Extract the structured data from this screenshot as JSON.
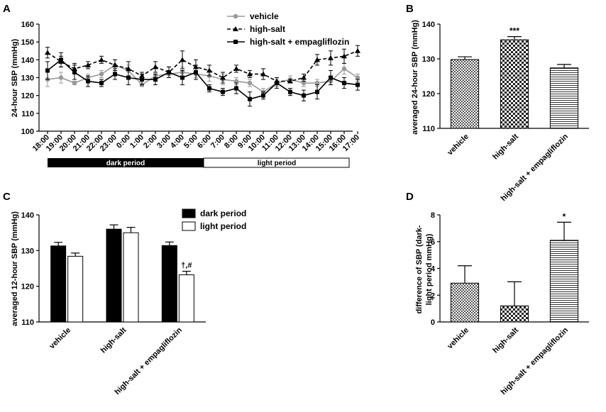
{
  "panels": {
    "A": {
      "letter": "A",
      "chart_data": {
        "type": "line",
        "ylabel": "24-hour SBP (mmHg)",
        "ylim": [
          100,
          160
        ],
        "yticks": [
          100,
          110,
          120,
          130,
          140,
          150,
          160
        ],
        "categories": [
          "18:00",
          "19:00",
          "20:00",
          "21:00",
          "22:00",
          "23:00",
          "0:00",
          "1:00",
          "2:00",
          "3:00",
          "4:00",
          "5:00",
          "6:00",
          "7:00",
          "8:00",
          "9:00",
          "10:00",
          "11:00",
          "12:00",
          "13:00",
          "14:00",
          "15:00",
          "16:00",
          "17:00"
        ],
        "series": [
          {
            "name": "vehicle",
            "color": "#999999",
            "marker": "circle",
            "dash": "solid",
            "values": [
              129,
              130,
              127,
              130,
              132,
              137,
              134,
              126,
              131,
              132,
              133,
              132,
              131,
              129,
              128,
              127,
              122,
              127,
              129,
              127,
              127,
              128,
              135,
              130
            ],
            "errors": [
              4,
              3,
              1,
              2,
              2,
              3,
              3,
              1,
              2,
              2,
              3,
              2,
              3,
              3,
              2,
              2,
              2,
              2,
              2,
              2,
              2,
              2,
              3,
              2
            ]
          },
          {
            "name": "high-salt",
            "color": "#000000",
            "marker": "triangle",
            "dash": "dashed",
            "values": [
              144,
              139,
              135,
              137,
              140,
              137,
              135,
              131,
              136,
              133,
              140,
              136,
              134,
              130,
              135,
              132,
              132,
              128,
              128,
              130,
              140,
              141,
              142,
              145
            ],
            "errors": [
              3,
              3,
              3,
              2,
              2,
              3,
              4,
              2,
              3,
              3,
              5,
              4,
              3,
              3,
              2,
              2,
              3,
              2,
              1,
              2,
              3,
              4,
              4,
              3
            ]
          },
          {
            "name": "high-salt + empagliflozin",
            "color": "#000000",
            "marker": "square",
            "dash": "solid",
            "values": [
              134,
              140,
              133,
              128,
              127,
              132,
              130,
              129,
              129,
              133,
              130,
              133,
              124,
              122,
              124,
              118,
              120,
              127,
              122,
              120,
              122,
              130,
              127,
              126
            ],
            "errors": [
              5,
              4,
              4,
              3,
              2,
              3,
              4,
              3,
              3,
              3,
              4,
              4,
              2,
              2,
              3,
              4,
              2,
              3,
              2,
              3,
              4,
              4,
              3,
              3
            ]
          }
        ],
        "period_bar": {
          "dark_label": "dark period",
          "light_label": "light period"
        }
      }
    },
    "B": {
      "letter": "B",
      "chart_data": {
        "type": "bar",
        "ylabel": "averaged 24-hour SBP (mmHg)",
        "ylim": [
          110,
          140
        ],
        "yticks": [
          110,
          120,
          130,
          140
        ],
        "categories": [
          "vehicle",
          "high-salt",
          "high-salt + empagliflozin"
        ],
        "values": [
          129.8,
          135.5,
          127.4
        ],
        "errors": [
          0.8,
          0.9,
          1.0
        ],
        "patterns": [
          "checker",
          "checker-dense",
          "hlines"
        ],
        "annotations": [
          "",
          "***",
          ""
        ]
      }
    },
    "C": {
      "letter": "C",
      "chart_data": {
        "type": "bar",
        "ylabel": "averaged 12-hour SBP (mmHg)",
        "ylim": [
          110,
          140
        ],
        "yticks": [
          110,
          120,
          130,
          140
        ],
        "categories": [
          "vehicle",
          "high-salt",
          "high-salt + empagliflozin"
        ],
        "series": [
          {
            "name": "dark period",
            "fill": "#000000",
            "values": [
              131.3,
              136.0,
              131.4
            ],
            "errors": [
              1.0,
              1.2,
              1.0
            ]
          },
          {
            "name": "light period",
            "fill": "#ffffff",
            "values": [
              128.4,
              135.0,
              123.2
            ],
            "errors": [
              0.9,
              1.5,
              1.0
            ]
          }
        ],
        "annotations": [
          "",
          "",
          "†,#"
        ]
      }
    },
    "D": {
      "letter": "D",
      "chart_data": {
        "type": "bar",
        "ylabel": "difference of SBP (dark-light period mmHg)",
        "ylabel_lines": [
          "difference of SBP (dark-",
          "light period mmHg)"
        ],
        "ylim": [
          0,
          8
        ],
        "yticks": [
          0,
          2,
          4,
          6,
          8
        ],
        "categories": [
          "vehicle",
          "high-salt",
          "high-salt + empagliflozin"
        ],
        "values": [
          2.9,
          1.2,
          6.1
        ],
        "errors": [
          1.3,
          1.8,
          1.35
        ],
        "patterns": [
          "checker",
          "checker-dense",
          "hlines"
        ],
        "annotations": [
          "",
          "",
          "*"
        ]
      }
    }
  }
}
